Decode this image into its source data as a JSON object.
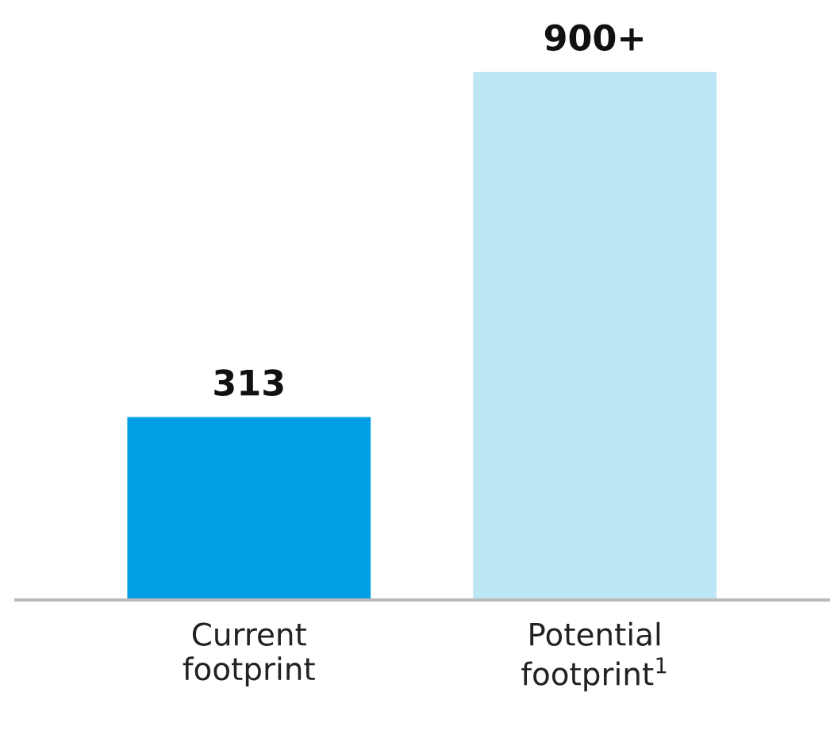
{
  "chart_data": {
    "type": "bar",
    "categories": [
      "Current\nfootprint",
      "Potential\nfootprint$^{1}$"
    ],
    "values": [
      313,
      900
    ],
    "colors": [
      "#009fe3",
      "#bde6f5"
    ],
    "value_labels": [
      "313",
      "900+"
    ]
  }
}
